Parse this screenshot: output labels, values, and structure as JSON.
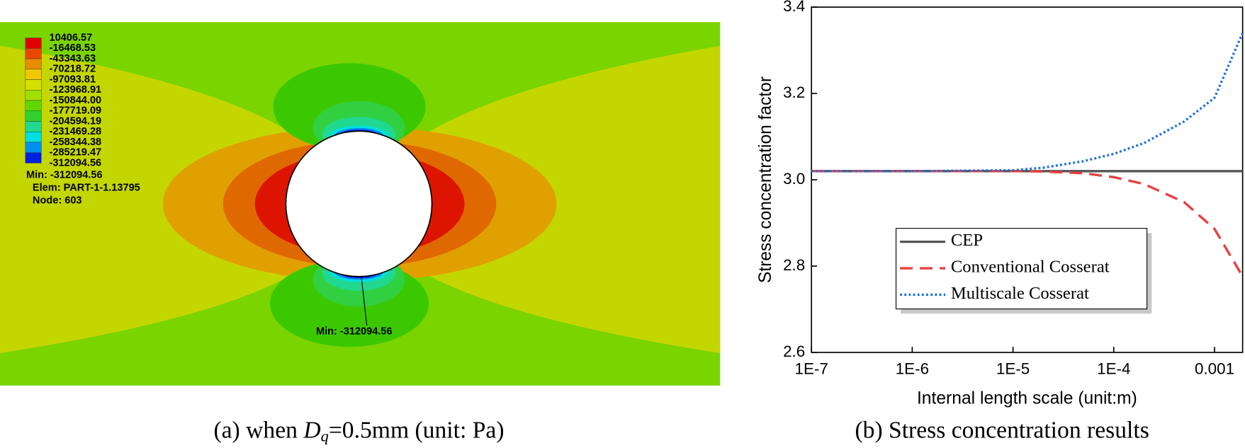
{
  "contour": {
    "legend_labels": [
      "10406.57",
      "-16468.53",
      "-43343.63",
      "-70218.72",
      "-97093.81",
      "-123968.91",
      "-150844.00",
      "-177719.09",
      "-204594.19",
      "-231469.28",
      "-258344.38",
      "-285219.47",
      "-312094.56"
    ],
    "colors": [
      "#e00000",
      "#e84800",
      "#e88c00",
      "#f0c800",
      "#d8e000",
      "#a0e000",
      "#60d800",
      "#30d030",
      "#20d890",
      "#00e0e0",
      "#0090f0",
      "#0020e0"
    ],
    "min_label": "Min: -312094.56",
    "elem_label": "Elem: PART-1-1.13795",
    "node_label": "Node: 603",
    "probe_label": "Min: -312094.56",
    "caption": {
      "prefix": "(a) when ",
      "symbol": "D",
      "subscript": "q",
      "suffix": "=0.5mm (unit: Pa)"
    }
  },
  "chart_data": {
    "type": "line",
    "caption": "(b) Stress concentration results",
    "x_label": "Internal length scale (unit:m)",
    "y_label": "Stress concentration factor",
    "log_x": true,
    "grid": false,
    "legend_loc": "lower center",
    "x": [
      1e-07,
      1e-06,
      1e-05,
      2e-05,
      5e-05,
      0.0001,
      0.0002,
      0.0005,
      0.001,
      0.0019
    ],
    "series": [
      {
        "name": "CEP",
        "color": "#555555",
        "style": "solid",
        "values": [
          3.02,
          3.02,
          3.02,
          3.02,
          3.02,
          3.02,
          3.02,
          3.02,
          3.02,
          3.02
        ]
      },
      {
        "name": "Conventional Cosserat",
        "color": "#e84040",
        "style": "dashed",
        "values": [
          3.02,
          3.02,
          3.02,
          3.019,
          3.015,
          3.006,
          2.99,
          2.948,
          2.886,
          2.776
        ]
      },
      {
        "name": "Multiscale Cosserat",
        "color": "#1a6fd8",
        "style": "dotted",
        "values": [
          3.02,
          3.02,
          3.022,
          3.028,
          3.043,
          3.06,
          3.085,
          3.135,
          3.19,
          3.34
        ]
      }
    ],
    "xlim": [
      1e-07,
      0.0019
    ],
    "xticks": [
      {
        "value": 1e-07,
        "label": "1E-7"
      },
      {
        "value": 1e-06,
        "label": "1E-6"
      },
      {
        "value": 1e-05,
        "label": "1E-5"
      },
      {
        "value": 0.0001,
        "label": "1E-4"
      },
      0.001
    ],
    "ylim": [
      2.6,
      3.4
    ],
    "yticks": [
      2.6,
      2.8,
      {
        "value": 3,
        "label": "3.0"
      },
      3.2,
      3.4
    ]
  }
}
